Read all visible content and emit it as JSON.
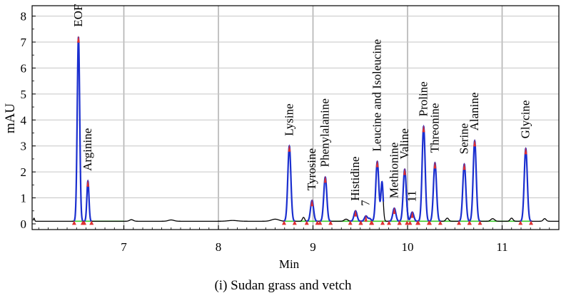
{
  "chart_data": {
    "type": "line",
    "title": "",
    "xlabel": "Min",
    "ylabel": "mAU",
    "xlim": [
      6.03,
      11.6
    ],
    "ylim": [
      -0.22,
      8.4
    ],
    "x_ticks": [
      7,
      8,
      9,
      10,
      11
    ],
    "y_ticks": [
      0,
      1,
      2,
      3,
      4,
      5,
      6,
      7,
      8
    ],
    "grid": true,
    "peaks": [
      {
        "label": "EOF",
        "x": 6.52,
        "y": 7.2
      },
      {
        "label": "Arginine",
        "x": 6.62,
        "y": 1.65
      },
      {
        "label": "Lysine",
        "x": 8.75,
        "y": 3.0
      },
      {
        "label": "Tyrosine",
        "x": 8.99,
        "y": 0.9
      },
      {
        "label": "Phenylalanine",
        "x": 9.13,
        "y": 1.8
      },
      {
        "label": "Histidine",
        "x": 9.45,
        "y": 0.5
      },
      {
        "label": "7",
        "x": 9.56,
        "y": 0.3
      },
      {
        "label": "Leucine and Isoleucine",
        "x": 9.68,
        "y": 2.4
      },
      {
        "label": "Methionine",
        "x": 9.86,
        "y": 0.6
      },
      {
        "label": "Valine",
        "x": 9.97,
        "y": 2.1
      },
      {
        "label": "11",
        "x": 10.05,
        "y": 0.45
      },
      {
        "label": "Proline",
        "x": 10.17,
        "y": 3.75
      },
      {
        "label": "Threonine",
        "x": 10.29,
        "y": 2.35
      },
      {
        "label": "Serine",
        "x": 10.6,
        "y": 2.3
      },
      {
        "label": "Alanine",
        "x": 10.71,
        "y": 3.2
      },
      {
        "label": "Glycine",
        "x": 11.25,
        "y": 2.9
      }
    ],
    "baseline": 0.1,
    "caption": "(i) Sudan grass and vetch"
  }
}
